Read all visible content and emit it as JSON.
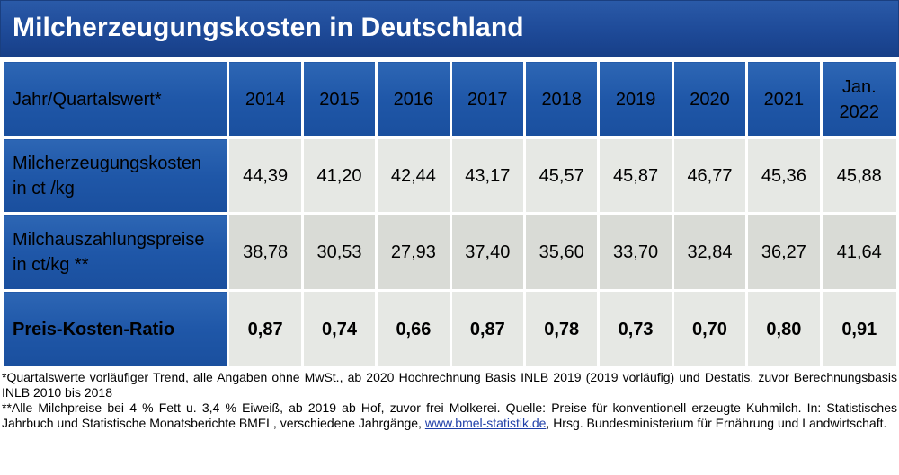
{
  "title": "Milcherzeugungskosten in Deutschland",
  "table": {
    "header_label": "Jahr/Quartalswert*",
    "years": [
      "2014",
      "2015",
      "2016",
      "2017",
      "2018",
      "2019",
      "2020",
      "2021"
    ],
    "last_col": [
      "Jan.",
      "2022"
    ],
    "rows": [
      {
        "label_lines": [
          "Milcherzeugungskosten",
          "in ct /kg"
        ],
        "values": [
          "44,39",
          "41,20",
          "42,44",
          "43,17",
          "45,57",
          "45,87",
          "46,77",
          "45,36",
          "45,88"
        ]
      },
      {
        "label_lines": [
          "Milchauszahlungspreise",
          "in ct/kg **"
        ],
        "values": [
          "38,78",
          "30,53",
          "27,93",
          "37,40",
          "35,60",
          "33,70",
          "32,84",
          "36,27",
          "41,64"
        ]
      },
      {
        "label_lines": [
          "Preis-Kosten-Ratio"
        ],
        "values": [
          "0,87",
          "0,74",
          "0,66",
          "0,87",
          "0,78",
          "0,73",
          "0,70",
          "0,80",
          "0,91"
        ]
      }
    ]
  },
  "notes": {
    "n1": "*Quartalswerte vorläufiger Trend, alle Angaben ohne MwSt., ab 2020 Hochrechnung Basis INLB 2019 (2019 vorläufig) und Destatis, zuvor Berechnungsbasis INLB 2010 bis 2018",
    "n2_before": "**Alle Milchpreise bei 4 % Fett u. 3,4 % Eiweiß, ab 2019 ab Hof, zuvor frei Molkerei. Quelle: Preise für konventionell erzeugte Kuhmilch. In: Statistisches Jahrbuch und Statistische Monatsberichte BMEL, verschiedene Jahrgänge, ",
    "n2_link": "www.bmel-statistik.de",
    "n2_after": ", Hrsg. Bundesministerium für Ernährung und Landwirtschaft."
  },
  "colors": {
    "header_blue": "#1f57a8",
    "title_blue": "#1e4a98",
    "cell_light": "#e6e8e4",
    "cell_mid": "#d9dbd6"
  }
}
